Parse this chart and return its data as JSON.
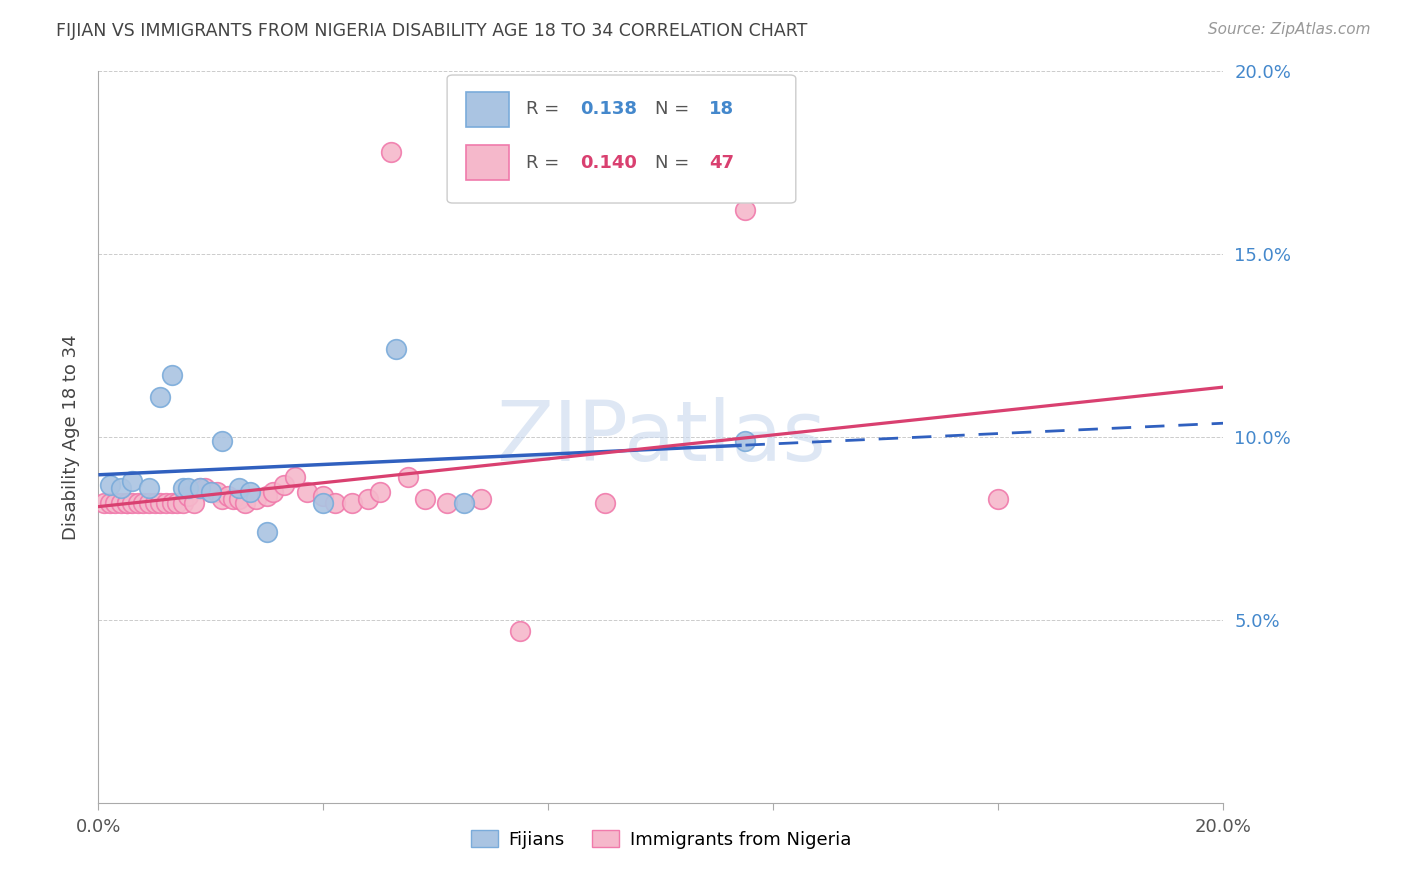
{
  "title": "FIJIAN VS IMMIGRANTS FROM NIGERIA DISABILITY AGE 18 TO 34 CORRELATION CHART",
  "source": "Source: ZipAtlas.com",
  "ylabel_label": "Disability Age 18 to 34",
  "xlim": [
    0.0,
    0.2
  ],
  "ylim": [
    0.0,
    0.2
  ],
  "x_tick_positions": [
    0.0,
    0.04,
    0.08,
    0.12,
    0.16,
    0.2
  ],
  "x_tick_labels": [
    "0.0%",
    "",
    "",
    "",
    "",
    "20.0%"
  ],
  "y_tick_positions": [
    0.05,
    0.1,
    0.15,
    0.2
  ],
  "y_tick_labels": [
    "5.0%",
    "10.0%",
    "15.0%",
    "20.0%"
  ],
  "fijian_R": "0.138",
  "fijian_N": "18",
  "nigeria_R": "0.140",
  "nigeria_N": "47",
  "fijian_color": "#aac4e2",
  "fijian_edge_color": "#7aabda",
  "nigeria_color": "#f5b8cb",
  "nigeria_edge_color": "#f07aab",
  "trend_fijian_color": "#3060bf",
  "trend_nigeria_color": "#d94070",
  "watermark_color": "#c8d8ee",
  "fijian_x": [
    0.002,
    0.004,
    0.006,
    0.009,
    0.011,
    0.013,
    0.015,
    0.016,
    0.018,
    0.02,
    0.022,
    0.025,
    0.027,
    0.03,
    0.04,
    0.053,
    0.065,
    0.115
  ],
  "fijian_y": [
    0.087,
    0.086,
    0.088,
    0.086,
    0.111,
    0.117,
    0.086,
    0.086,
    0.086,
    0.085,
    0.099,
    0.086,
    0.085,
    0.074,
    0.082,
    0.124,
    0.082,
    0.099
  ],
  "nigeria_x": [
    0.001,
    0.002,
    0.003,
    0.004,
    0.005,
    0.005,
    0.006,
    0.007,
    0.008,
    0.009,
    0.01,
    0.011,
    0.012,
    0.013,
    0.014,
    0.015,
    0.016,
    0.017,
    0.018,
    0.019,
    0.02,
    0.021,
    0.022,
    0.023,
    0.024,
    0.025,
    0.026,
    0.028,
    0.03,
    0.031,
    0.033,
    0.035,
    0.037,
    0.04,
    0.042,
    0.045,
    0.048,
    0.05,
    0.052,
    0.055,
    0.058,
    0.062,
    0.068,
    0.075,
    0.09,
    0.115,
    0.16
  ],
  "nigeria_y": [
    0.082,
    0.082,
    0.082,
    0.082,
    0.082,
    0.082,
    0.082,
    0.082,
    0.082,
    0.082,
    0.082,
    0.082,
    0.082,
    0.082,
    0.082,
    0.082,
    0.084,
    0.082,
    0.086,
    0.086,
    0.085,
    0.085,
    0.083,
    0.084,
    0.083,
    0.083,
    0.082,
    0.083,
    0.084,
    0.085,
    0.087,
    0.089,
    0.085,
    0.084,
    0.082,
    0.082,
    0.083,
    0.085,
    0.178,
    0.089,
    0.083,
    0.082,
    0.083,
    0.047,
    0.082,
    0.162,
    0.083
  ],
  "trend_fijian_solid_end": 0.115,
  "trend_fijian_x_start": 0.0,
  "trend_fijian_x_end": 0.2,
  "trend_nigeria_x_start": 0.0,
  "trend_nigeria_x_end": 0.2
}
